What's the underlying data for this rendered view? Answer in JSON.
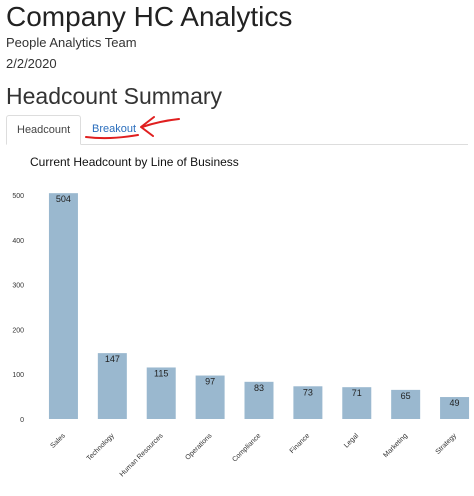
{
  "header": {
    "title": "Company HC Analytics",
    "team": "People Analytics Team",
    "date": "2/2/2020"
  },
  "section_title": "Headcount Summary",
  "tabs": [
    {
      "label": "Headcount",
      "active": true
    },
    {
      "label": "Breakout",
      "active": false
    }
  ],
  "annotation": {
    "color": "#e01f1f",
    "icon": "red-arrow-annotation-icon"
  },
  "chart_data": {
    "type": "bar",
    "title": "Current Headcount by Line of Business",
    "xlabel": "",
    "ylabel": "",
    "categories": [
      "Sales",
      "Technology",
      "Human Resources",
      "Operations",
      "Compliance",
      "Finance",
      "Legal",
      "Marketing",
      "Strategy"
    ],
    "values": [
      504,
      147,
      115,
      97,
      83,
      73,
      71,
      65,
      49
    ],
    "ylim": [
      0,
      520
    ],
    "yticks": [
      0,
      100,
      200,
      300,
      400,
      500
    ],
    "bar_color": "#9ab8cf",
    "grid": false,
    "legend": "none"
  }
}
